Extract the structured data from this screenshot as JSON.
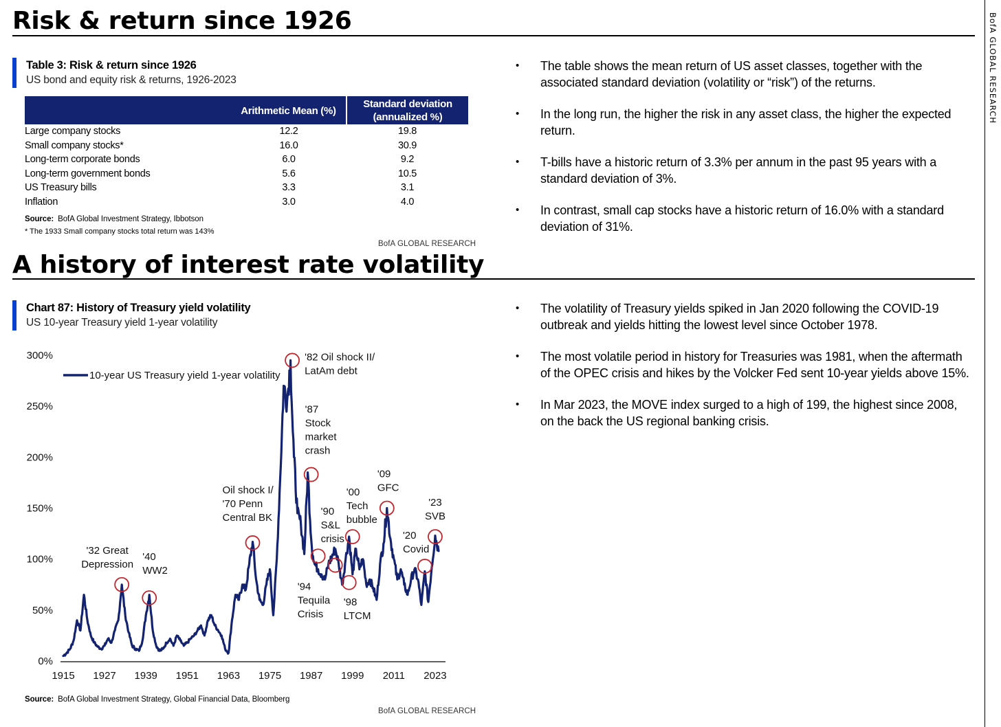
{
  "page": {
    "side_label": "BofA GLOBAL RESEARCH",
    "section1_title": "Risk & return since 1926",
    "section2_title": "A history of interest rate volatility"
  },
  "table3": {
    "title": "Table 3: Risk & return since 1926",
    "subtitle": "US bond and equity risk & returns, 1926-2023",
    "headers": [
      "",
      "Arithmetic Mean (%)",
      "Standard deviation (annualized %)"
    ],
    "rows": [
      [
        "Large company stocks",
        "12.2",
        "19.8"
      ],
      [
        "Small company stocks*",
        "16.0",
        "30.9"
      ],
      [
        "Long-term corporate bonds",
        "6.0",
        "9.2"
      ],
      [
        "Long-term government bonds",
        "5.6",
        "10.5"
      ],
      [
        "US Treasury bills",
        "3.3",
        "3.1"
      ],
      [
        "Inflation",
        "3.0",
        "4.0"
      ]
    ],
    "source_label": "Source:",
    "source_text": "BofA Global Investment Strategy, Ibbotson",
    "footnote": "* The 1933 Small company stocks total return was 143%",
    "brand": "BofA GLOBAL RESEARCH"
  },
  "bullets1": [
    "The table shows the mean return of US asset classes, together with the associated standard deviation (volatility or “risk”) of the returns.",
    "In the long run, the higher the risk in any asset class, the higher the expected return.",
    "T-bills have a historic return of 3.3% per annum in the past 95 years with a standard deviation of 3%.",
    "In contrast, small cap stocks have a historic return of 16.0% with a standard deviation of 31%."
  ],
  "chart87": {
    "title": "Chart 87: History of Treasury yield volatility",
    "subtitle": "US 10-year Treasury yield 1-year volatility",
    "source_label": "Source:",
    "source_text": "BofA Global Investment Strategy, Global Financial Data, Bloomberg",
    "brand": "BofA GLOBAL RESEARCH"
  },
  "bullets2": [
    "The volatility of Treasury yields spiked in Jan 2020 following the COVID-19 outbreak and yields hitting the lowest level since October 1978.",
    "The most volatile period in history for Treasuries was 1981, when the aftermath of the OPEC crisis and hikes by the Volcker Fed sent 10-year yields above 15%.",
    "In Mar 2023, the MOVE index surged to a high of 199, the highest since 2008, on the back the US regional banking crisis."
  ],
  "chart_data": {
    "type": "line",
    "title": "Chart 87: History of Treasury yield volatility",
    "xlabel": "",
    "ylabel": "",
    "xlim": [
      1915,
      2026
    ],
    "ylim": [
      0,
      300
    ],
    "x_ticks": [
      1915,
      1927,
      1939,
      1951,
      1963,
      1975,
      1987,
      1999,
      2011,
      2023
    ],
    "y_ticks": [
      0,
      50,
      100,
      150,
      200,
      250,
      300
    ],
    "y_tick_labels": [
      "0%",
      "50%",
      "100%",
      "150%",
      "200%",
      "250%",
      "300%"
    ],
    "legend": "10-year US Treasury yield 1-year volatility",
    "series": [
      {
        "name": "10-year US Treasury yield 1-year volatility",
        "color": "#14236f",
        "x": [
          1915,
          1916,
          1917,
          1918,
          1919,
          1920,
          1921,
          1922,
          1923,
          1924,
          1925,
          1926,
          1927,
          1928,
          1929,
          1930,
          1931,
          1932,
          1933,
          1934,
          1935,
          1936,
          1937,
          1938,
          1939,
          1940,
          1941,
          1942,
          1943,
          1944,
          1945,
          1946,
          1947,
          1948,
          1949,
          1950,
          1951,
          1952,
          1953,
          1954,
          1955,
          1956,
          1957,
          1958,
          1959,
          1960,
          1961,
          1962,
          1963,
          1964,
          1965,
          1966,
          1967,
          1968,
          1969,
          1970,
          1971,
          1972,
          1973,
          1974,
          1975,
          1976,
          1977,
          1978,
          1979,
          1980,
          1981,
          1981.5,
          1982,
          1983,
          1984,
          1985,
          1986,
          1987,
          1987.5,
          1988,
          1989,
          1990,
          1991,
          1992,
          1993,
          1994,
          1995,
          1996,
          1997,
          1998,
          1999,
          2000,
          2001,
          2002,
          2003,
          2004,
          2005,
          2006,
          2007,
          2008,
          2009,
          2010,
          2011,
          2012,
          2013,
          2014,
          2015,
          2016,
          2017,
          2018,
          2019,
          2020,
          2021,
          2022,
          2023,
          2024
        ],
        "values": [
          5,
          8,
          12,
          20,
          40,
          30,
          65,
          40,
          25,
          18,
          14,
          12,
          15,
          22,
          18,
          30,
          40,
          75,
          45,
          28,
          15,
          12,
          10,
          20,
          45,
          65,
          30,
          15,
          10,
          12,
          18,
          22,
          15,
          25,
          20,
          15,
          18,
          22,
          25,
          30,
          35,
          25,
          40,
          45,
          35,
          30,
          25,
          12,
          8,
          40,
          65,
          60,
          75,
          70,
          95,
          117,
          80,
          60,
          55,
          75,
          90,
          45,
          100,
          180,
          270,
          255,
          295,
          240,
          200,
          145,
          135,
          105,
          185,
          120,
          103,
          95,
          90,
          85,
          80,
          95,
          102,
          110,
          95,
          75,
          100,
          122,
          85,
          110,
          90,
          100,
          75,
          80,
          72,
          60,
          95,
          115,
          150,
          120,
          100,
          80,
          90,
          75,
          65,
          80,
          90,
          80,
          55,
          88,
          58,
          92,
          123,
          108
        ]
      }
    ],
    "annotations": [
      {
        "label": "'32 Great Depression",
        "x": 1932,
        "y": 75
      },
      {
        "label": "'40 WW2",
        "x": 1940,
        "y": 62
      },
      {
        "label": "Oil shock I/ '70 Penn Central BK",
        "x": 1970,
        "y": 116
      },
      {
        "label": "'82 Oil shock II/ LatAm debt",
        "x": 1981.5,
        "y": 295
      },
      {
        "label": "'87 Stock market crash",
        "x": 1987,
        "y": 183
      },
      {
        "label": "'90 S&L crisis",
        "x": 1989,
        "y": 103
      },
      {
        "label": "'94 Tequila Crisis",
        "x": 1994,
        "y": 94
      },
      {
        "label": "'98 LTCM",
        "x": 1998,
        "y": 77
      },
      {
        "label": "'00 Tech bubble",
        "x": 1999,
        "y": 122
      },
      {
        "label": "'09 GFC",
        "x": 2009,
        "y": 150
      },
      {
        "label": "'20 Covid",
        "x": 2020,
        "y": 93
      },
      {
        "label": "'23 SVB",
        "x": 2023,
        "y": 122
      }
    ]
  }
}
